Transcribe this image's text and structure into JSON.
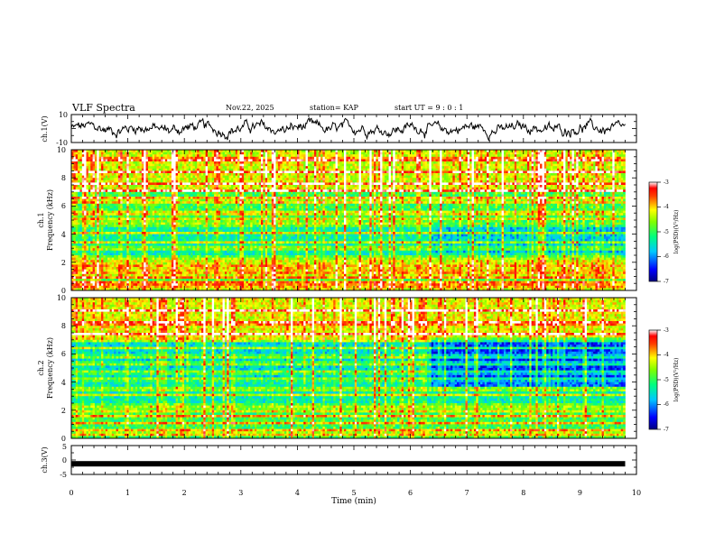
{
  "header": {
    "title": "VLF Spectra",
    "date": "Nov.22, 2025",
    "station": "station= KAP",
    "start": "start  UT =   9 : 0  : 1"
  },
  "chart_data": [
    {
      "type": "line",
      "name": "ch1-waveform",
      "ylabel": "ch.1(V)",
      "ylim": [
        -10,
        10
      ],
      "ytick_labels": [
        "10",
        "-10"
      ],
      "xlim": [
        0,
        10
      ],
      "x_end": 9.8,
      "series": [
        {
          "name": "ch.1",
          "values": []
        }
      ]
    },
    {
      "type": "heatmap",
      "name": "ch1-spectrogram",
      "ylabel": [
        "ch.1",
        "Frequency (kHz)"
      ],
      "ylim": [
        0,
        10
      ],
      "ytick_labels": [
        "0",
        "2",
        "4",
        "6",
        "8",
        "10"
      ],
      "xlim": [
        0,
        10
      ],
      "x_end": 9.8,
      "colorbar": {
        "label": "log(PSD)(V²/Hz)",
        "range": [
          -7,
          -3
        ],
        "tick_labels": [
          "-3",
          "-4",
          "-5",
          "-6",
          "-7"
        ]
      },
      "line_frequencies_khz": [
        0.2,
        0.4,
        0.6,
        0.9,
        1.2,
        1.5,
        1.8,
        2.1,
        2.3,
        3.0,
        3.4,
        4.1,
        4.7,
        5.0,
        5.5,
        6.3,
        6.6,
        7.1,
        7.6,
        8.4,
        9.3
      ],
      "band_summary": [
        {
          "from_khz": 0,
          "to_khz": 2,
          "level": -4.8
        },
        {
          "from_khz": 2,
          "to_khz": 5,
          "level": -5.4
        },
        {
          "from_khz": 5,
          "to_khz": 7,
          "level": -5.0
        },
        {
          "from_khz": 7,
          "to_khz": 10,
          "level": -4.3
        }
      ]
    },
    {
      "type": "heatmap",
      "name": "ch2-spectrogram",
      "ylabel": [
        "ch.2",
        "Frequency (kHz)"
      ],
      "ylim": [
        0,
        10
      ],
      "ytick_labels": [
        "0",
        "2",
        "4",
        "6",
        "8",
        "10"
      ],
      "xlim": [
        0,
        10
      ],
      "x_end": 9.8,
      "change_time_min": 6.35,
      "colorbar": {
        "label": "log(PSD)(V²/Hz)",
        "range": [
          -7,
          -3
        ],
        "tick_labels": [
          "-3",
          "-4",
          "-5",
          "-6",
          "-7"
        ]
      },
      "line_frequencies_khz": [
        0.3,
        0.6,
        1.1,
        1.6,
        2.0,
        2.3,
        3.1,
        3.5,
        4.2,
        4.7,
        5.3,
        5.8,
        6.4,
        6.9,
        7.4,
        8.2,
        9.1
      ],
      "band_summary": [
        {
          "from_khz": 0,
          "to_khz": 2,
          "level": -5.0
        },
        {
          "from_khz": 2,
          "to_khz": 4,
          "level": -5.4
        },
        {
          "from_khz": 4,
          "to_khz": 7,
          "level": -5.6
        },
        {
          "from_khz": 7,
          "to_khz": 10,
          "level": -4.2
        }
      ]
    },
    {
      "type": "line",
      "name": "ch3-waveform",
      "ylabel": "ch.3(V)",
      "ylim": [
        -5,
        5
      ],
      "ytick_labels": [
        "5",
        "0",
        "-5"
      ],
      "xlim": [
        0,
        10
      ],
      "x_end": 9.8,
      "constant_value": -1.3,
      "xlabel": "Time (min)",
      "xtick_labels": [
        "0",
        "1",
        "2",
        "3",
        "4",
        "5",
        "6",
        "7",
        "8",
        "9",
        "10"
      ]
    }
  ]
}
